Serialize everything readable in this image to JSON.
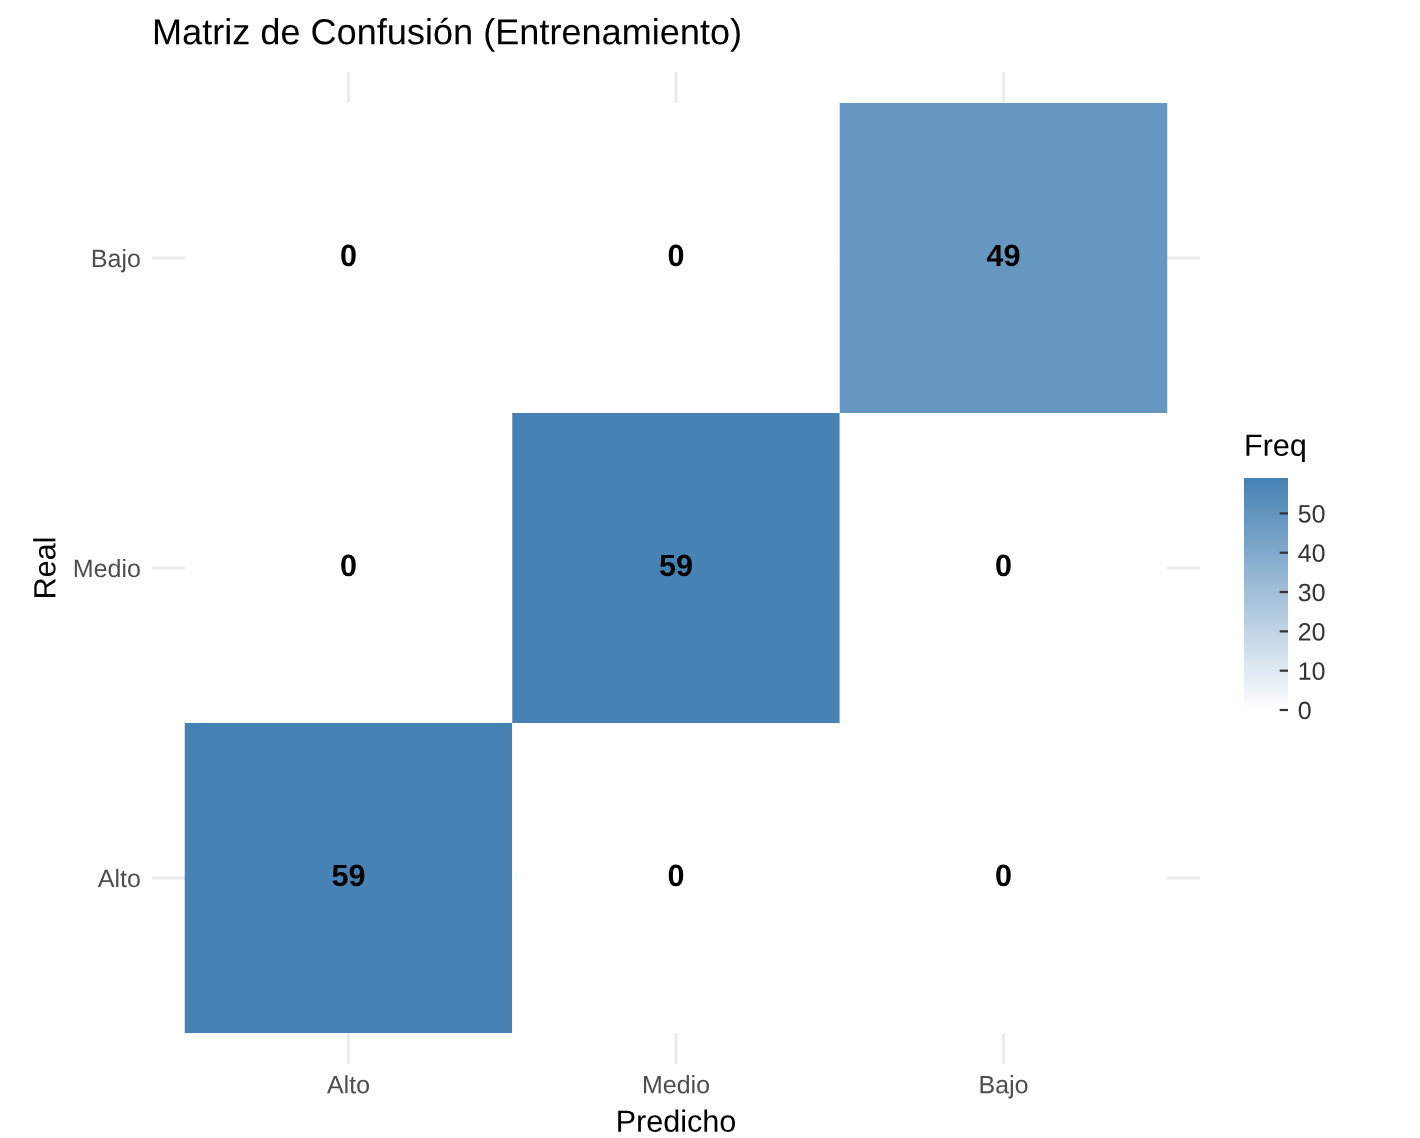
{
  "chart_data": {
    "type": "heatmap",
    "title": "Matriz de Confusión (Entrenamiento)",
    "xlabel": "Predicho",
    "ylabel": "Real",
    "legend_title": "Freq",
    "categories": [
      "Alto",
      "Medio",
      "Bajo"
    ],
    "y_categories": [
      "Bajo",
      "Medio",
      "Alto"
    ],
    "cells": [
      [
        0,
        0,
        49
      ],
      [
        0,
        59,
        0
      ],
      [
        59,
        0,
        0
      ]
    ],
    "data_labels": true,
    "color": "#4682b4",
    "clim": [
      0,
      59
    ],
    "cticks": [
      0,
      10,
      20,
      30,
      40,
      50
    ],
    "grid": true
  }
}
